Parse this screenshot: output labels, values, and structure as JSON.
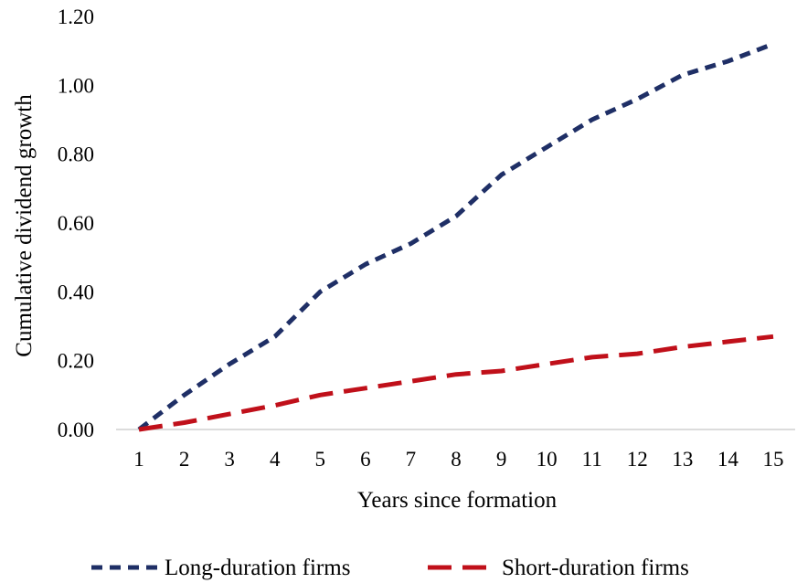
{
  "chart_data": {
    "type": "line",
    "title": "",
    "xlabel": "Years since formation",
    "ylabel": "Cumulative dividend growth",
    "categories": [
      1,
      2,
      3,
      4,
      5,
      6,
      7,
      8,
      9,
      10,
      11,
      12,
      13,
      14,
      15
    ],
    "ylim": [
      0,
      1.2
    ],
    "yticks": [
      "0.00",
      "0.20",
      "0.40",
      "0.60",
      "0.80",
      "1.00",
      "1.20"
    ],
    "grid": false,
    "legend_position": "bottom",
    "series": [
      {
        "name": "Long-duration firms",
        "color": "#1f2f66",
        "dash": "short",
        "values": [
          0.0,
          0.1,
          0.19,
          0.27,
          0.4,
          0.48,
          0.54,
          0.62,
          0.74,
          0.82,
          0.9,
          0.96,
          1.03,
          1.07,
          1.12
        ]
      },
      {
        "name": "Short-duration firms",
        "color": "#c0101a",
        "dash": "long",
        "values": [
          0.0,
          0.02,
          0.045,
          0.07,
          0.1,
          0.12,
          0.14,
          0.16,
          0.17,
          0.19,
          0.21,
          0.22,
          0.24,
          0.255,
          0.27
        ]
      }
    ]
  }
}
